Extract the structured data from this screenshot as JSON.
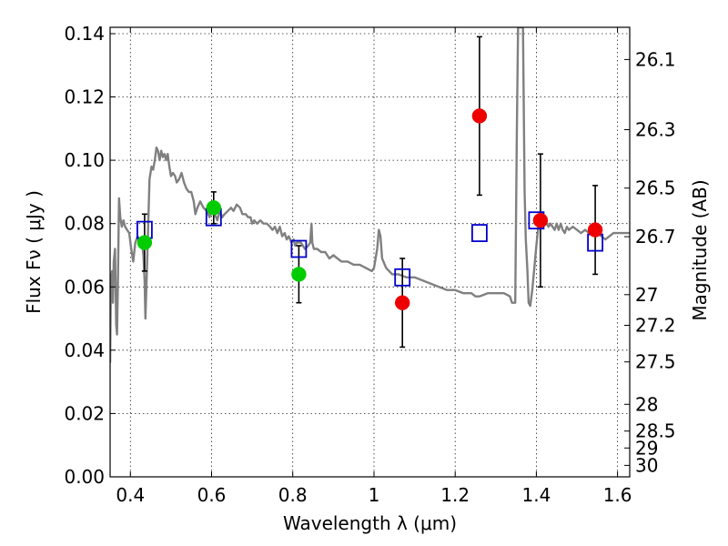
{
  "chart_data": {
    "type": "scatter",
    "title": "",
    "xlabel": "Wavelength  λ (μm)",
    "ylabel": "Flux  Fν  ( μJy )",
    "y2label": "Magnitude (AB)",
    "xlim": [
      0.35,
      1.63
    ],
    "ylim": [
      0.0,
      0.142
    ],
    "grid": true,
    "legend": "none",
    "x_ticks": [
      {
        "v": 0.4,
        "label": "0.4"
      },
      {
        "v": 0.6,
        "label": "0.6"
      },
      {
        "v": 0.8,
        "label": "0.8"
      },
      {
        "v": 1.0,
        "label": "1"
      },
      {
        "v": 1.2,
        "label": "1.2"
      },
      {
        "v": 1.4,
        "label": "1.4"
      },
      {
        "v": 1.6,
        "label": "1.6"
      }
    ],
    "y_ticks": [
      {
        "v": 0.0,
        "label": "0.00"
      },
      {
        "v": 0.02,
        "label": "0.02"
      },
      {
        "v": 0.04,
        "label": "0.04"
      },
      {
        "v": 0.06,
        "label": "0.06"
      },
      {
        "v": 0.08,
        "label": "0.08"
      },
      {
        "v": 0.1,
        "label": "0.10"
      },
      {
        "v": 0.12,
        "label": "0.12"
      },
      {
        "v": 0.14,
        "label": "0.14"
      }
    ],
    "y2_ticks": [
      {
        "mag": 26.1,
        "label": "26.1"
      },
      {
        "mag": 26.3,
        "label": "26.3"
      },
      {
        "mag": 26.5,
        "label": "26.5"
      },
      {
        "mag": 26.7,
        "label": "26.7"
      },
      {
        "mag": 27.0,
        "label": "27"
      },
      {
        "mag": 27.2,
        "label": "27.2"
      },
      {
        "mag": 27.5,
        "label": "27.5"
      },
      {
        "mag": 28.0,
        "label": "28"
      },
      {
        "mag": 28.5,
        "label": "28.5"
      },
      {
        "mag": 29.0,
        "label": "29"
      },
      {
        "mag": 30.0,
        "label": "30"
      }
    ],
    "series": [
      {
        "kind": "model-spectrum",
        "color": "#808080",
        "points": [
          [
            0.35,
            0.036
          ],
          [
            0.352,
            0.062
          ],
          [
            0.355,
            0.065
          ],
          [
            0.357,
            0.055
          ],
          [
            0.359,
            0.068
          ],
          [
            0.362,
            0.072
          ],
          [
            0.365,
            0.048
          ],
          [
            0.367,
            0.045
          ],
          [
            0.369,
            0.06
          ],
          [
            0.372,
            0.088
          ],
          [
            0.375,
            0.082
          ],
          [
            0.379,
            0.079
          ],
          [
            0.383,
            0.081
          ],
          [
            0.387,
            0.079
          ],
          [
            0.392,
            0.078
          ],
          [
            0.397,
            0.077
          ],
          [
            0.402,
            0.072
          ],
          [
            0.407,
            0.068
          ],
          [
            0.412,
            0.074
          ],
          [
            0.418,
            0.076
          ],
          [
            0.423,
            0.073
          ],
          [
            0.428,
            0.075
          ],
          [
            0.432,
            0.07
          ],
          [
            0.435,
            0.062
          ],
          [
            0.437,
            0.05
          ],
          [
            0.44,
            0.062
          ],
          [
            0.443,
            0.076
          ],
          [
            0.447,
            0.094
          ],
          [
            0.452,
            0.098
          ],
          [
            0.456,
            0.097
          ],
          [
            0.46,
            0.1
          ],
          [
            0.464,
            0.104
          ],
          [
            0.468,
            0.103
          ],
          [
            0.472,
            0.1
          ],
          [
            0.476,
            0.103
          ],
          [
            0.48,
            0.101
          ],
          [
            0.484,
            0.102
          ],
          [
            0.488,
            0.1
          ],
          [
            0.492,
            0.102
          ],
          [
            0.496,
            0.098
          ],
          [
            0.5,
            0.095
          ],
          [
            0.505,
            0.096
          ],
          [
            0.51,
            0.095
          ],
          [
            0.514,
            0.093
          ],
          [
            0.52,
            0.094
          ],
          [
            0.526,
            0.096
          ],
          [
            0.532,
            0.093
          ],
          [
            0.538,
            0.091
          ],
          [
            0.544,
            0.09
          ],
          [
            0.55,
            0.09
          ],
          [
            0.556,
            0.087
          ],
          [
            0.56,
            0.083
          ],
          [
            0.565,
            0.085
          ],
          [
            0.572,
            0.087
          ],
          [
            0.58,
            0.085
          ],
          [
            0.588,
            0.084
          ],
          [
            0.595,
            0.082
          ],
          [
            0.602,
            0.085
          ],
          [
            0.608,
            0.083
          ],
          [
            0.614,
            0.081
          ],
          [
            0.62,
            0.084
          ],
          [
            0.626,
            0.082
          ],
          [
            0.632,
            0.083
          ],
          [
            0.64,
            0.084
          ],
          [
            0.648,
            0.085
          ],
          [
            0.654,
            0.084
          ],
          [
            0.662,
            0.086
          ],
          [
            0.67,
            0.085
          ],
          [
            0.676,
            0.083
          ],
          [
            0.684,
            0.083
          ],
          [
            0.69,
            0.082
          ],
          [
            0.696,
            0.082
          ],
          [
            0.7,
            0.08
          ],
          [
            0.705,
            0.081
          ],
          [
            0.712,
            0.08
          ],
          [
            0.72,
            0.081
          ],
          [
            0.728,
            0.08
          ],
          [
            0.736,
            0.08
          ],
          [
            0.744,
            0.079
          ],
          [
            0.75,
            0.078
          ],
          [
            0.756,
            0.079
          ],
          [
            0.762,
            0.077
          ],
          [
            0.768,
            0.079
          ],
          [
            0.774,
            0.076
          ],
          [
            0.78,
            0.077
          ],
          [
            0.785,
            0.075
          ],
          [
            0.79,
            0.076
          ],
          [
            0.797,
            0.074
          ],
          [
            0.802,
            0.075
          ],
          [
            0.806,
            0.073
          ],
          [
            0.81,
            0.074
          ],
          [
            0.82,
            0.074
          ],
          [
            0.83,
            0.072
          ],
          [
            0.838,
            0.073
          ],
          [
            0.843,
            0.074
          ],
          [
            0.846,
            0.08
          ],
          [
            0.848,
            0.074
          ],
          [
            0.852,
            0.072
          ],
          [
            0.86,
            0.072
          ],
          [
            0.87,
            0.071
          ],
          [
            0.88,
            0.071
          ],
          [
            0.89,
            0.069
          ],
          [
            0.9,
            0.07
          ],
          [
            0.91,
            0.069
          ],
          [
            0.92,
            0.068
          ],
          [
            0.935,
            0.068
          ],
          [
            0.95,
            0.067
          ],
          [
            0.965,
            0.067
          ],
          [
            0.98,
            0.066
          ],
          [
            0.995,
            0.065
          ],
          [
            1.0,
            0.066
          ],
          [
            1.008,
            0.072
          ],
          [
            1.012,
            0.078
          ],
          [
            1.016,
            0.076
          ],
          [
            1.02,
            0.069
          ],
          [
            1.03,
            0.066
          ],
          [
            1.045,
            0.064
          ],
          [
            1.06,
            0.064
          ],
          [
            1.08,
            0.063
          ],
          [
            1.1,
            0.063
          ],
          [
            1.12,
            0.062
          ],
          [
            1.14,
            0.061
          ],
          [
            1.16,
            0.06
          ],
          [
            1.18,
            0.059
          ],
          [
            1.2,
            0.059
          ],
          [
            1.22,
            0.058
          ],
          [
            1.24,
            0.058
          ],
          [
            1.25,
            0.057
          ],
          [
            1.26,
            0.057
          ],
          [
            1.28,
            0.058
          ],
          [
            1.3,
            0.058
          ],
          [
            1.32,
            0.058
          ],
          [
            1.335,
            0.057
          ],
          [
            1.34,
            0.055
          ],
          [
            1.348,
            0.055
          ],
          [
            1.352,
            0.11
          ],
          [
            1.355,
            0.142
          ],
          [
            1.36,
            0.142
          ],
          [
            1.364,
            0.142
          ],
          [
            1.367,
            0.142
          ],
          [
            1.371,
            0.09
          ],
          [
            1.374,
            0.075
          ],
          [
            1.378,
            0.065
          ],
          [
            1.381,
            0.055
          ],
          [
            1.385,
            0.054
          ],
          [
            1.39,
            0.059
          ],
          [
            1.395,
            0.066
          ],
          [
            1.4,
            0.073
          ],
          [
            1.405,
            0.079
          ],
          [
            1.41,
            0.081
          ],
          [
            1.415,
            0.083
          ],
          [
            1.42,
            0.081
          ],
          [
            1.425,
            0.08
          ],
          [
            1.43,
            0.079
          ],
          [
            1.435,
            0.08
          ],
          [
            1.44,
            0.079
          ],
          [
            1.445,
            0.078
          ],
          [
            1.45,
            0.08
          ],
          [
            1.455,
            0.078
          ],
          [
            1.46,
            0.08
          ],
          [
            1.465,
            0.078
          ],
          [
            1.47,
            0.077
          ],
          [
            1.475,
            0.079
          ],
          [
            1.48,
            0.078
          ],
          [
            1.49,
            0.079
          ],
          [
            1.5,
            0.078
          ],
          [
            1.51,
            0.077
          ],
          [
            1.52,
            0.078
          ],
          [
            1.53,
            0.077
          ],
          [
            1.54,
            0.078
          ],
          [
            1.55,
            0.077
          ],
          [
            1.56,
            0.076
          ],
          [
            1.57,
            0.075
          ],
          [
            1.58,
            0.076
          ],
          [
            1.59,
            0.077
          ],
          [
            1.6,
            0.077
          ],
          [
            1.61,
            0.077
          ],
          [
            1.62,
            0.077
          ],
          [
            1.63,
            0.077
          ]
        ]
      },
      {
        "kind": "model-photometry",
        "marker": "open-square",
        "color": "#0000cc",
        "x": [
          0.435,
          0.605,
          0.815,
          1.07,
          1.26,
          1.4,
          1.545
        ],
        "y": [
          0.078,
          0.082,
          0.072,
          0.063,
          0.077,
          0.081,
          0.074
        ]
      },
      {
        "kind": "observed-optical",
        "marker": "circle",
        "color": "#00cc00",
        "x": [
          0.435,
          0.605,
          0.815
        ],
        "y": [
          0.074,
          0.085,
          0.064
        ],
        "yerr": [
          0.009,
          0.005,
          0.009
        ]
      },
      {
        "kind": "observed-infrared",
        "marker": "circle",
        "color": "#ee0000",
        "x": [
          1.07,
          1.26,
          1.41,
          1.545
        ],
        "y": [
          0.055,
          0.114,
          0.081,
          0.078
        ],
        "yerr": [
          0.014,
          0.025,
          0.021,
          0.014
        ]
      }
    ]
  }
}
